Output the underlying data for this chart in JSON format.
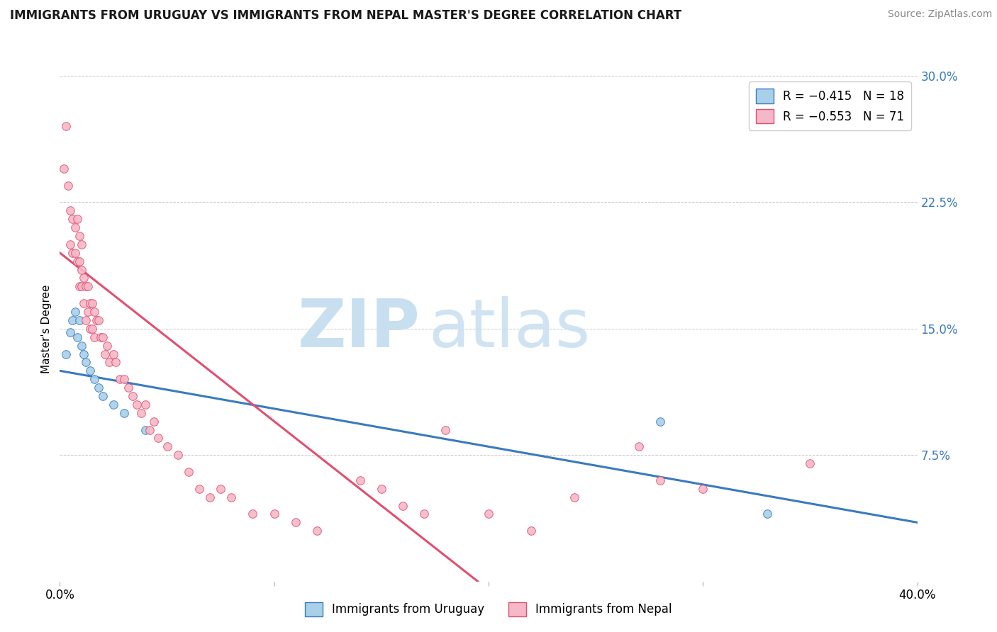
{
  "title": "IMMIGRANTS FROM URUGUAY VS IMMIGRANTS FROM NEPAL MASTER'S DEGREE CORRELATION CHART",
  "source_text": "Source: ZipAtlas.com",
  "ylabel_label": "Master's Degree",
  "legend_uruguay": "R = −0.415   N = 18",
  "legend_nepal": "R = −0.553   N = 71",
  "legend_label_uruguay": "Immigrants from Uruguay",
  "legend_label_nepal": "Immigrants from Nepal",
  "color_uruguay": "#a8d0e8",
  "color_nepal": "#f5b8c8",
  "line_color_uruguay": "#3a7abf",
  "line_color_nepal": "#e05070",
  "xlim": [
    0.0,
    0.4
  ],
  "ylim": [
    0.0,
    0.3
  ],
  "uruguay_scatter_x": [
    0.003,
    0.005,
    0.006,
    0.007,
    0.008,
    0.009,
    0.01,
    0.011,
    0.012,
    0.014,
    0.016,
    0.018,
    0.02,
    0.025,
    0.03,
    0.04,
    0.28,
    0.33
  ],
  "uruguay_scatter_y": [
    0.135,
    0.148,
    0.155,
    0.16,
    0.145,
    0.155,
    0.14,
    0.135,
    0.13,
    0.125,
    0.12,
    0.115,
    0.11,
    0.105,
    0.1,
    0.09,
    0.095,
    0.04
  ],
  "nepal_scatter_x": [
    0.002,
    0.003,
    0.004,
    0.005,
    0.005,
    0.006,
    0.006,
    0.007,
    0.007,
    0.008,
    0.008,
    0.009,
    0.009,
    0.009,
    0.01,
    0.01,
    0.01,
    0.011,
    0.011,
    0.012,
    0.012,
    0.013,
    0.013,
    0.014,
    0.014,
    0.015,
    0.015,
    0.016,
    0.016,
    0.017,
    0.018,
    0.019,
    0.02,
    0.021,
    0.022,
    0.023,
    0.025,
    0.026,
    0.028,
    0.03,
    0.032,
    0.034,
    0.036,
    0.038,
    0.04,
    0.042,
    0.044,
    0.046,
    0.05,
    0.055,
    0.06,
    0.065,
    0.07,
    0.075,
    0.08,
    0.09,
    0.1,
    0.11,
    0.12,
    0.14,
    0.15,
    0.16,
    0.17,
    0.18,
    0.2,
    0.22,
    0.24,
    0.28,
    0.3,
    0.35,
    0.27
  ],
  "nepal_scatter_y": [
    0.245,
    0.27,
    0.235,
    0.22,
    0.2,
    0.215,
    0.195,
    0.21,
    0.195,
    0.215,
    0.19,
    0.205,
    0.19,
    0.175,
    0.2,
    0.185,
    0.175,
    0.18,
    0.165,
    0.175,
    0.155,
    0.175,
    0.16,
    0.165,
    0.15,
    0.165,
    0.15,
    0.16,
    0.145,
    0.155,
    0.155,
    0.145,
    0.145,
    0.135,
    0.14,
    0.13,
    0.135,
    0.13,
    0.12,
    0.12,
    0.115,
    0.11,
    0.105,
    0.1,
    0.105,
    0.09,
    0.095,
    0.085,
    0.08,
    0.075,
    0.065,
    0.055,
    0.05,
    0.055,
    0.05,
    0.04,
    0.04,
    0.035,
    0.03,
    0.06,
    0.055,
    0.045,
    0.04,
    0.09,
    0.04,
    0.03,
    0.05,
    0.06,
    0.055,
    0.07,
    0.08
  ],
  "uruguay_line_x": [
    0.0,
    0.4
  ],
  "uruguay_line_y": [
    0.125,
    0.035
  ],
  "nepal_line_x": [
    0.0,
    0.195
  ],
  "nepal_line_y": [
    0.195,
    0.0
  ]
}
